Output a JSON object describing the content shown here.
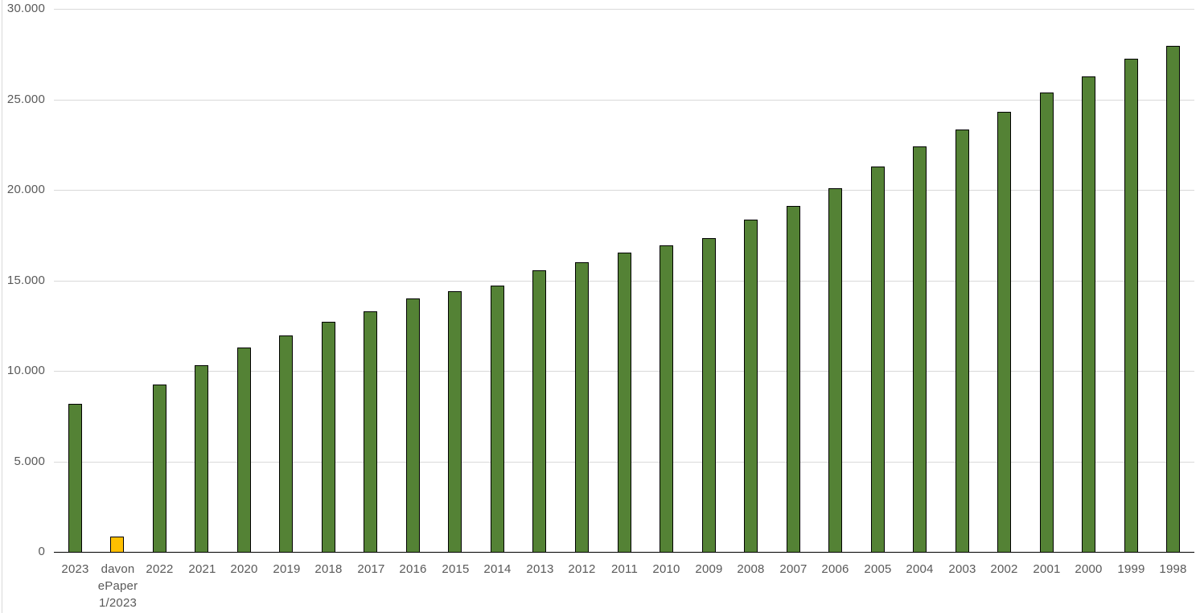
{
  "chart_data": {
    "type": "bar",
    "categories": [
      "2023",
      "davon\nePaper\n1/2023",
      "2022",
      "2021",
      "2020",
      "2019",
      "2018",
      "2017",
      "2016",
      "2015",
      "2014",
      "2013",
      "2012",
      "2011",
      "2010",
      "2009",
      "2008",
      "2007",
      "2006",
      "2005",
      "2004",
      "2003",
      "2002",
      "2001",
      "2000",
      "1999",
      "1998"
    ],
    "values": [
      8200,
      850,
      9250,
      10300,
      11300,
      11950,
      12700,
      13300,
      14000,
      14400,
      14700,
      15550,
      16000,
      16550,
      16950,
      17350,
      18350,
      19100,
      20100,
      21300,
      22400,
      23350,
      24300,
      25400,
      26250,
      27250,
      27950
    ],
    "highlight_index": 1,
    "ylim": [
      0,
      30000
    ],
    "yticks": {
      "values": [
        0,
        5000,
        10000,
        15000,
        20000,
        25000,
        30000
      ],
      "labels": [
        "0",
        "5.000",
        "10.000",
        "15.000",
        "20.000",
        "25.000",
        "30.000"
      ]
    },
    "grid": "horizontal",
    "legend": "none",
    "colors": {
      "bar_fill": "#548235",
      "highlight_fill": "#FFC000",
      "bar_border": "#000000",
      "gridline": "#D9D9D9",
      "axis_line": "#000000",
      "tick_label": "#595959",
      "background": "#FFFFFF",
      "chart_border": "#D9D9D9"
    }
  }
}
